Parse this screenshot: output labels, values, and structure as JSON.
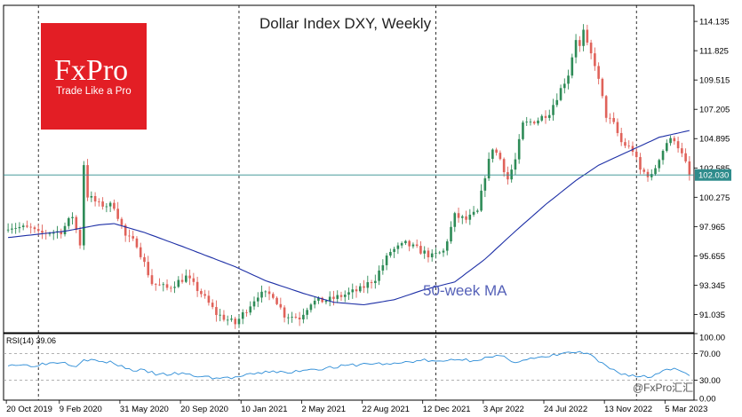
{
  "chart_data": {
    "type": "candlestick",
    "title": "Dollar Index DXY, Weekly",
    "price_axis": {
      "ticks": [
        "114.135",
        "111.825",
        "109.515",
        "107.205",
        "104.895",
        "102.585",
        "100.275",
        "97.965",
        "95.655",
        "93.345",
        "91.035"
      ],
      "range": [
        89.6,
        115.4
      ],
      "current_value": "102.030"
    },
    "time_axis": {
      "ticks": [
        "20 Oct 2019",
        "9 Feb 2020",
        "31 May 2020",
        "20 Sep 2020",
        "10 Jan 2021",
        "2 May 2021",
        "22 Aug 2021",
        "12 Dec 2021",
        "3 Apr 2022",
        "24 Jul 2022",
        "13 Nov 2022",
        "5 Mar 2023"
      ],
      "vertical_separators_at_weeks": [
        8,
        61,
        113,
        166,
        217
      ]
    },
    "close_anchors": [
      [
        0,
        98.0
      ],
      [
        6,
        97.8
      ],
      [
        8,
        97.4
      ],
      [
        14,
        97.6
      ],
      [
        17,
        98.8
      ],
      [
        19,
        96.6
      ],
      [
        20,
        102.9
      ],
      [
        21,
        100.4
      ],
      [
        24,
        99.7
      ],
      [
        28,
        99.6
      ],
      [
        31,
        97.2
      ],
      [
        34,
        96.6
      ],
      [
        38,
        93.5
      ],
      [
        42,
        93.1
      ],
      [
        47,
        94.0
      ],
      [
        51,
        92.7
      ],
      [
        55,
        91.1
      ],
      [
        60,
        90.3
      ],
      [
        66,
        92.6
      ],
      [
        70,
        92.6
      ],
      [
        73,
        91.0
      ],
      [
        77,
        90.8
      ],
      [
        80,
        92.0
      ],
      [
        85,
        92.2
      ],
      [
        93,
        93.0
      ],
      [
        97,
        93.9
      ],
      [
        101,
        96.0
      ],
      [
        105,
        96.6
      ],
      [
        108,
        96.2
      ],
      [
        112,
        95.6
      ],
      [
        115,
        96.0
      ],
      [
        118,
        98.8
      ],
      [
        121,
        98.5
      ],
      [
        124,
        99.1
      ],
      [
        126,
        102.0
      ],
      [
        128,
        104.2
      ],
      [
        130,
        103.3
      ],
      [
        132,
        101.7
      ],
      [
        134,
        103.2
      ],
      [
        136,
        106.0
      ],
      [
        140,
        106.4
      ],
      [
        143,
        107.0
      ],
      [
        146,
        108.8
      ],
      [
        148,
        110.0
      ],
      [
        150,
        112.8
      ],
      [
        151,
        112.1
      ],
      [
        152,
        113.3
      ],
      [
        153,
        112.2
      ],
      [
        155,
        110.8
      ],
      [
        158,
        106.7
      ],
      [
        160,
        106.0
      ],
      [
        162,
        104.6
      ],
      [
        165,
        104.0
      ],
      [
        167,
        102.4
      ],
      [
        170,
        101.9
      ],
      [
        172,
        103.4
      ],
      [
        174,
        104.6
      ],
      [
        176,
        104.9
      ],
      [
        177,
        104.3
      ],
      [
        179,
        102.9
      ],
      [
        180,
        102.0
      ]
    ],
    "ma_anchors": [
      [
        0,
        97.1
      ],
      [
        15,
        97.6
      ],
      [
        24,
        98.1
      ],
      [
        28,
        98.2
      ],
      [
        36,
        97.5
      ],
      [
        46,
        96.4
      ],
      [
        60,
        94.8
      ],
      [
        68,
        93.7
      ],
      [
        78,
        92.7
      ],
      [
        86,
        92.0
      ],
      [
        94,
        91.8
      ],
      [
        102,
        92.2
      ],
      [
        110,
        93.0
      ],
      [
        118,
        93.6
      ],
      [
        126,
        95.4
      ],
      [
        134,
        97.6
      ],
      [
        142,
        99.7
      ],
      [
        150,
        101.6
      ],
      [
        156,
        102.8
      ],
      [
        164,
        103.9
      ],
      [
        172,
        105.0
      ],
      [
        181,
        105.6
      ]
    ],
    "ma_label": "50-week MA",
    "rsi": {
      "label": "RSI(14) 39.06",
      "ticks": [
        "100.00",
        "70.00",
        "30.00",
        "0.00"
      ],
      "range": [
        0,
        100
      ],
      "value_anchors": [
        [
          0,
          54
        ],
        [
          6,
          52
        ],
        [
          10,
          55
        ],
        [
          14,
          58
        ],
        [
          18,
          52
        ],
        [
          20,
          62
        ],
        [
          24,
          58
        ],
        [
          28,
          56
        ],
        [
          32,
          46
        ],
        [
          36,
          44
        ],
        [
          40,
          38
        ],
        [
          45,
          40
        ],
        [
          50,
          36
        ],
        [
          56,
          33
        ],
        [
          60,
          34
        ],
        [
          66,
          40
        ],
        [
          70,
          44
        ],
        [
          74,
          40
        ],
        [
          78,
          46
        ],
        [
          84,
          48
        ],
        [
          90,
          52
        ],
        [
          96,
          55
        ],
        [
          102,
          54
        ],
        [
          106,
          58
        ],
        [
          110,
          60
        ],
        [
          114,
          57
        ],
        [
          118,
          62
        ],
        [
          122,
          60
        ],
        [
          126,
          63
        ],
        [
          130,
          66
        ],
        [
          134,
          58
        ],
        [
          138,
          62
        ],
        [
          142,
          64
        ],
        [
          146,
          70
        ],
        [
          150,
          72
        ],
        [
          153,
          70
        ],
        [
          155,
          62
        ],
        [
          158,
          50
        ],
        [
          162,
          40
        ],
        [
          166,
          36
        ],
        [
          170,
          35
        ],
        [
          174,
          48
        ],
        [
          177,
          46
        ],
        [
          180,
          39
        ]
      ]
    }
  },
  "logo": {
    "brand": "FxPro",
    "tagline": "Trade Like a Pro",
    "color": "#e31e25"
  },
  "watermark": "@FxPro汇汇",
  "colors": {
    "bull": "#2e8b57",
    "bear": "#e0625a",
    "ma": "#1d2fa6",
    "rsi": "#2a8bd6",
    "current_line": "#2f8c8c"
  }
}
